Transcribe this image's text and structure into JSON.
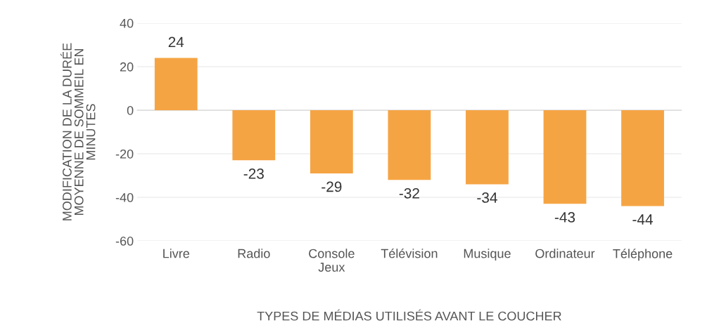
{
  "chart_data": {
    "type": "bar",
    "categories": [
      "Livre",
      "Radio",
      "Console\nJeux",
      "Télévision",
      "Musique",
      "Ordinateur",
      "Téléphone"
    ],
    "values": [
      24,
      -23,
      -29,
      -32,
      -34,
      -43,
      -44
    ],
    "color": "#f5a444",
    "ylim": [
      -60,
      40
    ],
    "yticks": [
      -60,
      -40,
      -20,
      0,
      20,
      40
    ],
    "grid": "y",
    "data_labels": true,
    "xlabel": "TYPES DE MÉDIAS UTILISÉS AVANT LE COUCHER",
    "ylabel": "MODIFICATION DE LA DURÉE\nMOYENNE DE SOMMEIL EN\nMINUTES"
  }
}
